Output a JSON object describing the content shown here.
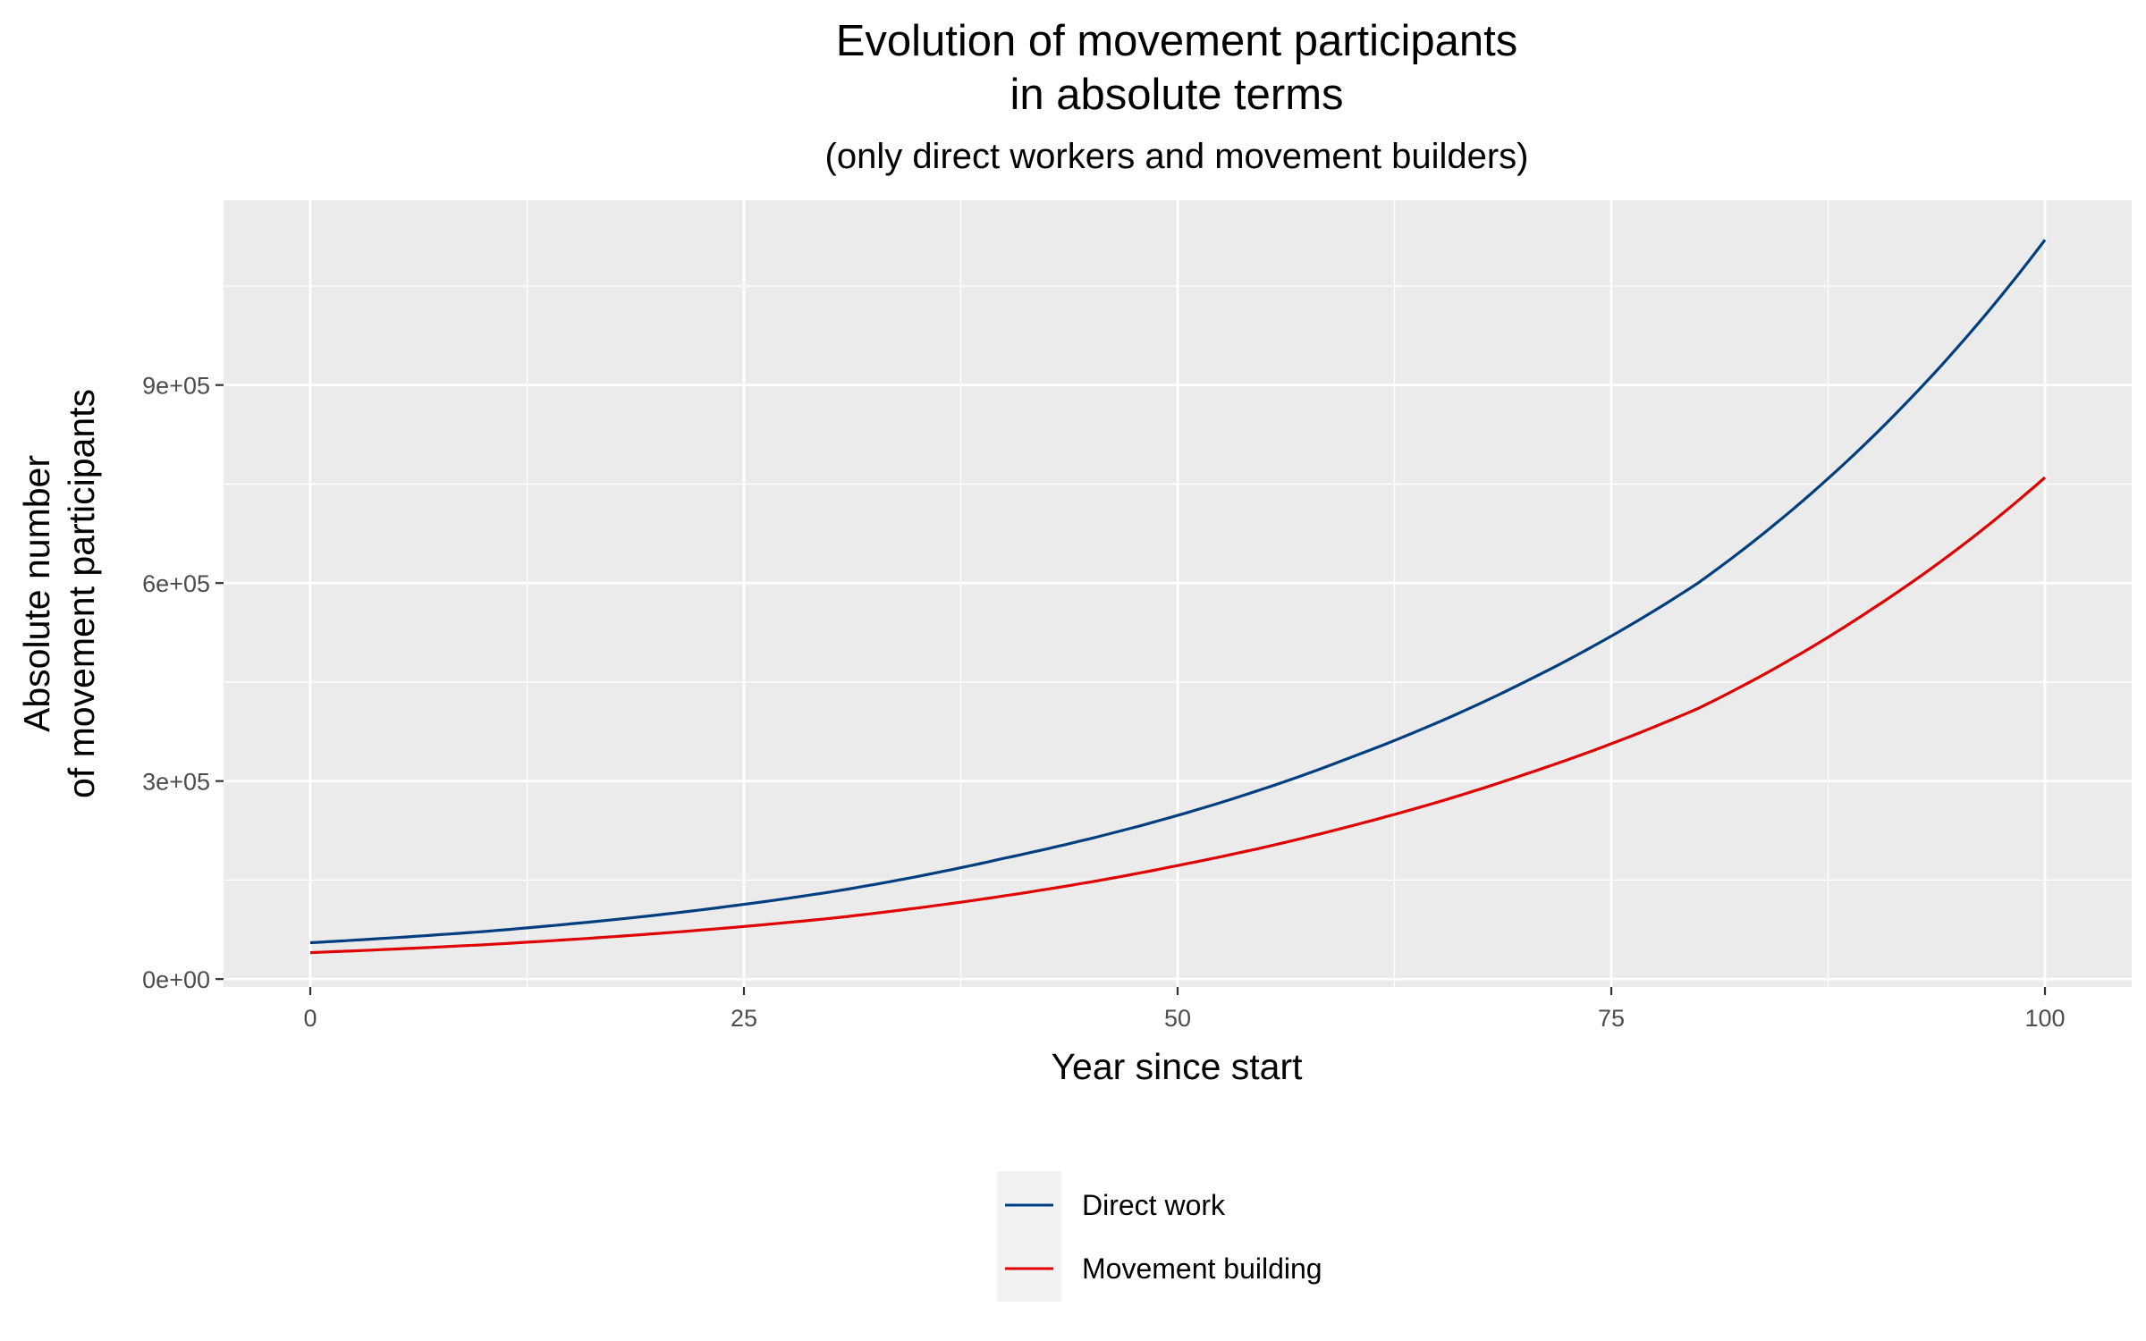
{
  "chart_data": {
    "type": "line",
    "title_lines": [
      "Evolution of movement participants",
      "in absolute terms"
    ],
    "subtitle": "(only direct workers and movement builders)",
    "xlabel": "Year since start",
    "ylabel_lines": [
      "Absolute number",
      "of movement participants"
    ],
    "xlim": [
      -5,
      105
    ],
    "ylim": [
      -12000,
      1180000
    ],
    "x_ticks": [
      0,
      25,
      50,
      75,
      100
    ],
    "x_tick_labels": [
      "0",
      "25",
      "50",
      "75",
      "100"
    ],
    "y_ticks": [
      0,
      300000,
      600000,
      900000
    ],
    "y_tick_labels": [
      "0e+00",
      "3e+05",
      "6e+05",
      "9e+05"
    ],
    "grid": true,
    "legend_position": "bottom",
    "series": [
      {
        "name": "Direct work",
        "color": "#003f7f",
        "x": [
          0,
          10,
          20,
          30,
          40,
          50,
          60,
          70,
          80,
          90,
          100
        ],
        "values": [
          55000,
          72000,
          97000,
          132000,
          183000,
          248000,
          336000,
          450000,
          600000,
          820000,
          1120000
        ]
      },
      {
        "name": "Movement building",
        "color": "#e00000",
        "x": [
          0,
          10,
          20,
          30,
          40,
          50,
          60,
          70,
          80,
          90,
          100
        ],
        "values": [
          40000,
          52000,
          69000,
          92000,
          126000,
          172000,
          232000,
          310000,
          410000,
          560000,
          760000
        ]
      }
    ]
  }
}
